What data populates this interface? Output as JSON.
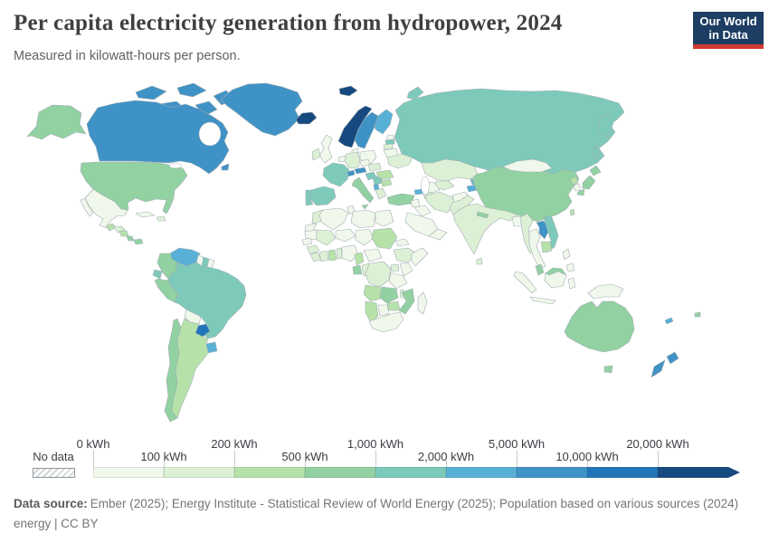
{
  "header": {
    "title": "Per capita electricity generation from hydropower, 2024",
    "subtitle": "Measured in kilowatt-hours per person.",
    "logo": {
      "line1": "Our World",
      "line2": "in Data",
      "bg_color": "#1d3d63",
      "accent_color": "#cf3a32"
    }
  },
  "chart_data": {
    "type": "heatmap",
    "title": "Per capita electricity generation from hydropower, 2024",
    "unit": "kilowatt-hours per person",
    "legend": {
      "no_data_label": "No data",
      "bins": [
        {
          "label": "0 kWh",
          "row": "top",
          "color": "#eff8ea"
        },
        {
          "label": "100 kWh",
          "row": "bottom",
          "color": "#dcf0d5"
        },
        {
          "label": "200 kWh",
          "row": "top",
          "color": "#b6e2aa"
        },
        {
          "label": "500 kWh",
          "row": "bottom",
          "color": "#92d1a2"
        },
        {
          "label": "1,000 kWh",
          "row": "top",
          "color": "#7dcabb"
        },
        {
          "label": "2,000 kWh",
          "row": "bottom",
          "color": "#58b0d7"
        },
        {
          "label": "5,000 kWh",
          "row": "top",
          "color": "#3f92c6"
        },
        {
          "label": "10,000 kWh",
          "row": "bottom",
          "color": "#2076b8"
        },
        {
          "label": "20,000 kWh",
          "row": "top",
          "color": "#16497f"
        }
      ]
    },
    "region_buckets": {
      "greenland": 6,
      "canada": 6,
      "usa": 3,
      "mexico": 0,
      "guatemala": 2,
      "honduras": 1,
      "nicaragua": 2,
      "costa_rica": 3,
      "panama": 3,
      "cuba": 0,
      "hispaniola": 1,
      "venezuela": 5,
      "colombia": 3,
      "guyana": 0,
      "suriname": 4,
      "french_guiana": 0,
      "ecuador": 4,
      "peru": 3,
      "brazil": 4,
      "bolivia": 0,
      "paraguay": 7,
      "uruguay": 5,
      "argentina": 2,
      "chile": 3,
      "iceland": 8,
      "norway": 8,
      "sweden": 6,
      "finland": 5,
      "denmark": 0,
      "united_kingdom": 0,
      "ireland": 1,
      "benelux": 0,
      "germany": 1,
      "poland": 0,
      "czechia": 0,
      "slovakia_hungary": 1,
      "france": 4,
      "switzerland": 6,
      "austria": 6,
      "spain": 4,
      "portugal": 4,
      "italy": 3,
      "croatia_slovenia": 4,
      "serbia_bosnia": 4,
      "albania_montenegro": 5,
      "greece": 1,
      "bulgaria": 2,
      "romania": 2,
      "estonia": 0,
      "latvia": 4,
      "lithuania": 1,
      "belarus": 0,
      "ukraine": 1,
      "russia": 4,
      "kazakhstan": 1,
      "uzbekistan": 1,
      "turkmenistan": 0,
      "kyrgyzstan": 5,
      "tajikistan": 5,
      "turkey": 3,
      "georgia": 5,
      "armenia_azerbaijan": 1,
      "syria": 0,
      "iraq": 0,
      "saudi_arabia": 0,
      "yemen_oman": 0,
      "iran": 1,
      "afghanistan": 0,
      "pakistan": 1,
      "india": 1,
      "nepal": 3,
      "bhutan": 7,
      "bangladesh": 0,
      "sri_lanka": 1,
      "china": 3,
      "mongolia": 0,
      "north_korea": 2,
      "south_korea": 0,
      "japan": 3,
      "taiwan": 2,
      "myanmar": 1,
      "thailand": 0,
      "laos": 6,
      "vietnam": 4,
      "cambodia": 2,
      "malaysia": 3,
      "malaysia_borneo": 3,
      "indonesia": 0,
      "philippines": 0,
      "new_guinea": 0,
      "australia": 3,
      "tasmania": 3,
      "new_zealand": 6,
      "new_caledonia": 5,
      "fiji": 3,
      "morocco": 1,
      "western_sahara": 0,
      "algeria": 0,
      "tunisia": 0,
      "libya": 0,
      "egypt": 0,
      "mauritania": 0,
      "mali": 1,
      "niger": 0,
      "chad": 0,
      "sudan": 2,
      "eritrea": 0,
      "senegal": 0,
      "guinea": 1,
      "liberia": 1,
      "cote_divoire": 1,
      "ghana": 2,
      "benin": 1,
      "nigeria": 0,
      "cameroon": 2,
      "car": 0,
      "ethiopia": 1,
      "somalia": 0,
      "gabon": 3,
      "congo": 1,
      "drc": 1,
      "uganda": 1,
      "kenya": 0,
      "tanzania": 0,
      "angola": 2,
      "zambia": 3,
      "malawi": 1,
      "mozambique": 3,
      "zimbabwe": 2,
      "botswana": 0,
      "namibia": 2,
      "south_africa": 0,
      "madagascar": 0
    }
  },
  "footer": {
    "source_label": "Data source:",
    "source_text": "Ember (2025); Energy Institute - Statistical Review of World Energy (2025); Population based on various sources (2024)",
    "license_text": "energy | CC BY"
  }
}
